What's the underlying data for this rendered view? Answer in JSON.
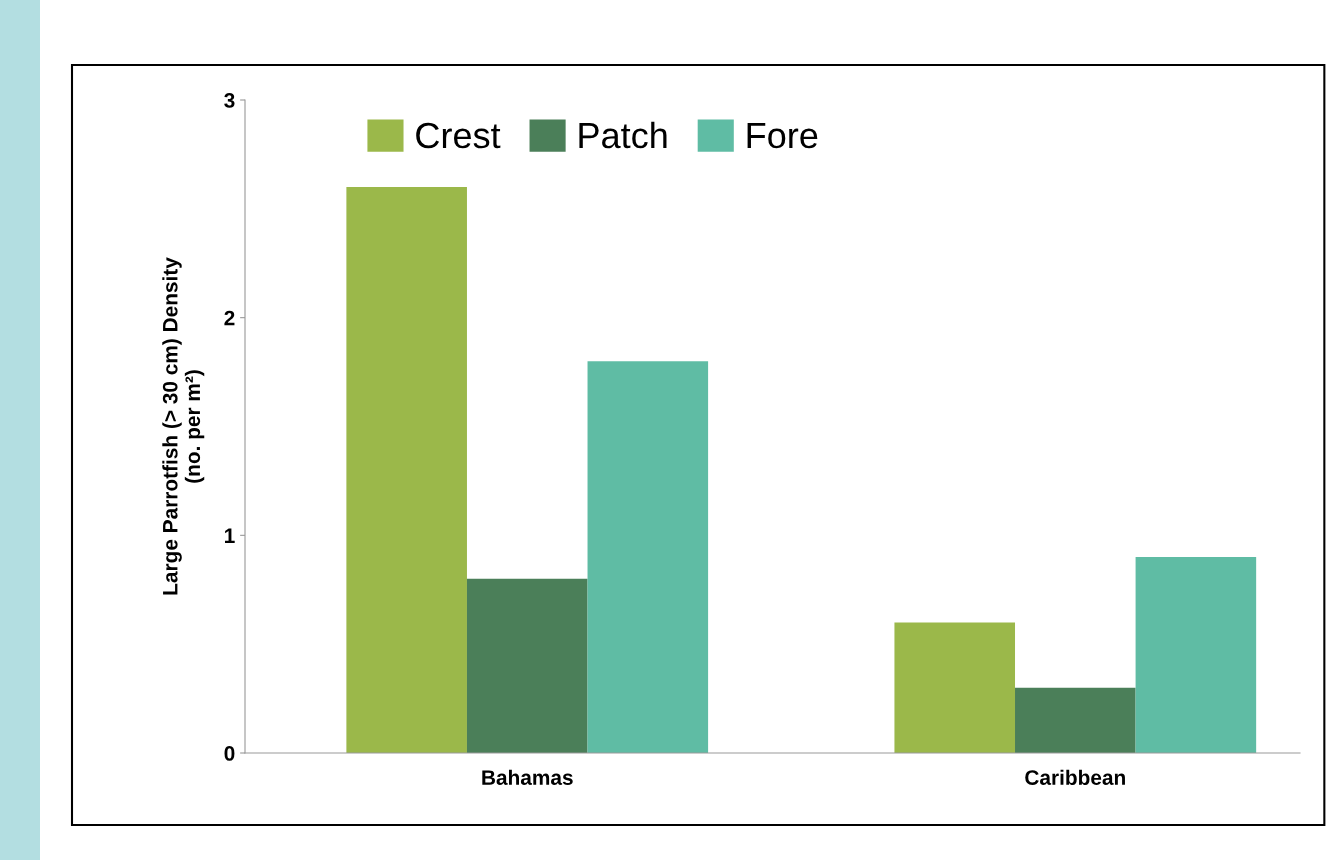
{
  "chart_data": {
    "type": "bar",
    "ylabel": "Large Parrotfish (> 30 cm) Density\n(no. per m²)",
    "categories": [
      "Bahamas",
      "Caribbean"
    ],
    "series": [
      {
        "name": "Crest",
        "color": "#9bb84a",
        "values": [
          2.6,
          0.6
        ]
      },
      {
        "name": "Patch",
        "color": "#4b7f59",
        "values": [
          0.8,
          0.3
        ]
      },
      {
        "name": "Fore",
        "color": "#5fbca4",
        "values": [
          1.8,
          0.9
        ]
      }
    ],
    "ylim": [
      0,
      3
    ],
    "yticks": [
      0,
      1,
      2,
      3
    ],
    "grid": false,
    "legend": "top"
  }
}
